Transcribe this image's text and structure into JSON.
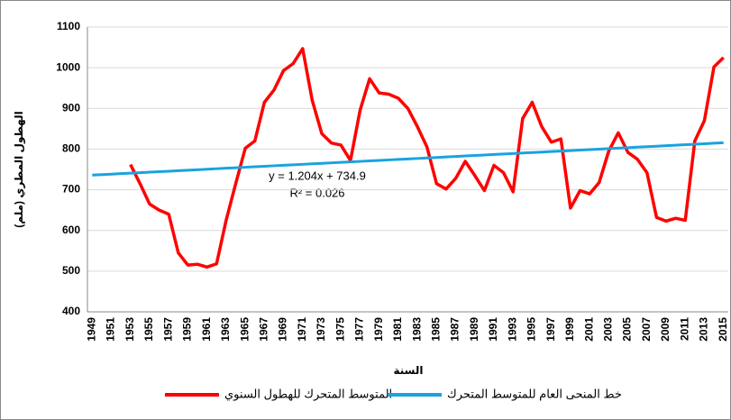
{
  "chart_data": {
    "type": "line",
    "ylabel": "الهطول المطري (ملم)",
    "xlabel": "السنة",
    "annotations": [
      "y = 1.204x + 734.9",
      "R² = 0.026"
    ],
    "categories": [
      "1949",
      null,
      "1951",
      null,
      "1953",
      null,
      "1955",
      null,
      "1957",
      null,
      "1959",
      null,
      "1961",
      null,
      "1963",
      null,
      "1965",
      null,
      "1967",
      null,
      "1969",
      null,
      "1971",
      null,
      "1973",
      null,
      "1975",
      null,
      "1977",
      null,
      "1979",
      null,
      "1981",
      null,
      "1983",
      null,
      "1985",
      null,
      "1987",
      null,
      "1989",
      null,
      "1991",
      null,
      "1993",
      null,
      "1995",
      null,
      "1997",
      null,
      "1999",
      null,
      "2001",
      null,
      "2003",
      null,
      "2005",
      null,
      "2007",
      null,
      "2009",
      null,
      "2011",
      null,
      "2013",
      null,
      "2015"
    ],
    "series": [
      {
        "name": "المتوسط المتحرك للهطول السنوي",
        "color": "#ff0000",
        "values": [
          null,
          null,
          null,
          null,
          762,
          715,
          665,
          650,
          640,
          545,
          515,
          517,
          510,
          518,
          625,
          715,
          802,
          820,
          915,
          945,
          993,
          1010,
          1047,
          920,
          838,
          815,
          810,
          772,
          895,
          973,
          938,
          935,
          925,
          900,
          855,
          805,
          715,
          702,
          728,
          770,
          735,
          698,
          760,
          742,
          695,
          875,
          915,
          855,
          817,
          825,
          655,
          698,
          690,
          718,
          795,
          840,
          792,
          775,
          742,
          632,
          623,
          630,
          625,
          820,
          870,
          1002,
          1025
        ]
      },
      {
        "name": "خط المنحى العام للمتوسط المتحرك",
        "color": "#1aa3e0",
        "values": [
          736.1,
          737.3,
          738.5,
          739.7,
          740.9,
          742.1,
          743.3,
          744.5,
          745.7,
          746.9,
          748.1,
          749.3,
          750.6,
          751.8,
          753.0,
          754.2,
          755.4,
          756.6,
          757.8,
          759.0,
          760.2,
          761.4,
          762.6,
          763.8,
          765.0,
          766.2,
          767.4,
          768.6,
          769.8,
          771.0,
          772.2,
          773.4,
          774.6,
          775.8,
          777.0,
          778.2,
          779.4,
          780.7,
          781.9,
          783.1,
          784.3,
          785.5,
          786.7,
          787.9,
          789.1,
          790.3,
          791.5,
          792.7,
          793.9,
          795.1,
          796.3,
          797.5,
          798.7,
          799.9,
          801.1,
          802.3,
          803.5,
          804.7,
          805.9,
          807.1,
          808.3,
          809.5,
          810.8,
          812.0,
          813.2,
          814.4,
          815.6
        ]
      }
    ],
    "ylim": [
      400,
      1100
    ],
    "yticks": [
      400,
      500,
      600,
      700,
      800,
      900,
      1000,
      1100
    ],
    "grid": true,
    "legend": "bottom"
  }
}
